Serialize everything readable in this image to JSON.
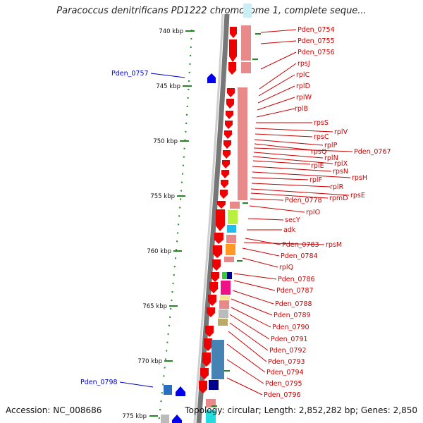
{
  "title": "Paracoccus denitrificans PD1222 chromosome 1, complete seque...",
  "footer": {
    "accession": "Accession: NC_008686",
    "summary": "Topology: circular; Length: 2,852,282 bp; Genes: 2,850"
  },
  "ticks": [
    "740 kbp",
    "745 kbp",
    "750 kbp",
    "755 kbp",
    "760 kbp",
    "765 kbp",
    "770 kbp",
    "775 kbp"
  ],
  "reverse_genes": [
    "Pden_0757",
    "Pden_0798"
  ],
  "forward_genes": [
    "Pden_0754",
    "Pden_0755",
    "Pden_0756",
    "rpsJ",
    "rplC",
    "rplD",
    "rplW",
    "rplB",
    "rpsS",
    "rplV",
    "rpsC",
    "rplP",
    "rpsQ",
    "Pden_0767",
    "rplN",
    "rplX",
    "rplE",
    "rpsN",
    "rpsH",
    "rplF",
    "rplR",
    "rpsE",
    "rpmD",
    "Pden_0778",
    "rplO",
    "secY",
    "adk",
    "Pden_0783",
    "rpsM",
    "Pden_0784",
    "rplQ",
    "Pden_0786",
    "Pden_0787",
    "Pden_0788",
    "Pden_0789",
    "Pden_0790",
    "Pden_0791",
    "Pden_0792",
    "Pden_0793",
    "Pden_0794",
    "Pden_0795",
    "Pden_0796"
  ],
  "colors": {
    "forward_gene": "#ee0000",
    "reverse_gene": "#0000ee",
    "label_forward": "#cc0000",
    "label_reverse": "#0000cc",
    "tick": "#228822",
    "backbone": "#888888"
  }
}
